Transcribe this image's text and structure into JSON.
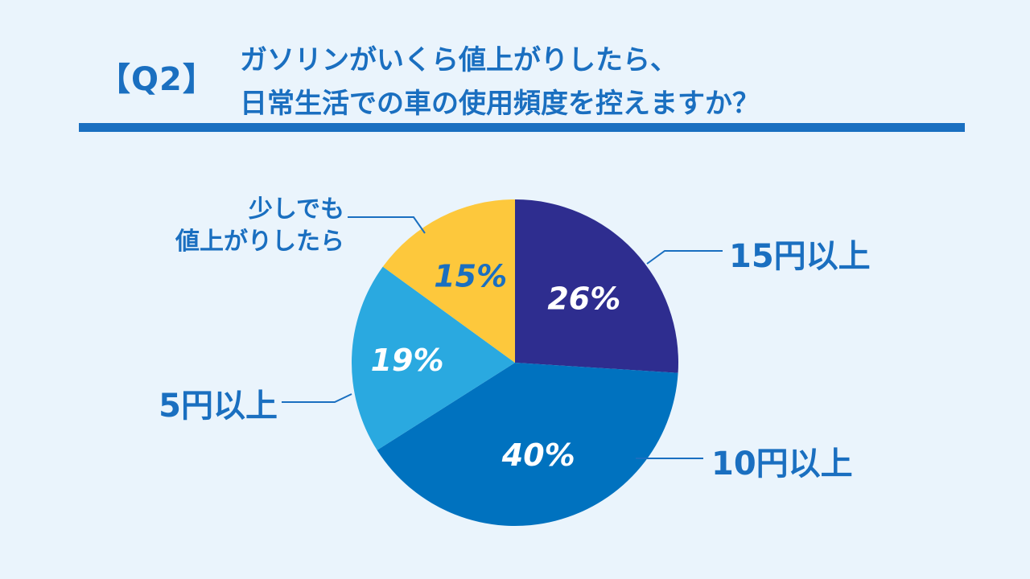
{
  "question": {
    "badge": "【Q2】",
    "title_lines": [
      "ガソリンがいくら値上がりしたら、",
      "日常生活での車の使用頻度を控えますか？"
    ]
  },
  "colors": {
    "accent": "#1a6fc0",
    "background": "#eaf4fc"
  },
  "chart_data": {
    "type": "pie",
    "start": "top, clockwise",
    "slices": [
      {
        "label": "15円以上",
        "value": 26,
        "value_text": "26%",
        "color": "#2e2d8f",
        "text_color": "#ffffff"
      },
      {
        "label": "10円以上",
        "value": 40,
        "value_text": "40%",
        "color": "#0072bf",
        "text_color": "#ffffff"
      },
      {
        "label": "5円以上",
        "value": 19,
        "value_text": "19%",
        "color": "#2aa9e0",
        "text_color": "#ffffff"
      },
      {
        "label": "少しでも値上がりしたら",
        "label_lines": [
          "少しでも",
          "値上がりしたら"
        ],
        "value": 15,
        "value_text": "15%",
        "color": "#fdc83c",
        "text_color": "#1a6fc0"
      }
    ]
  }
}
